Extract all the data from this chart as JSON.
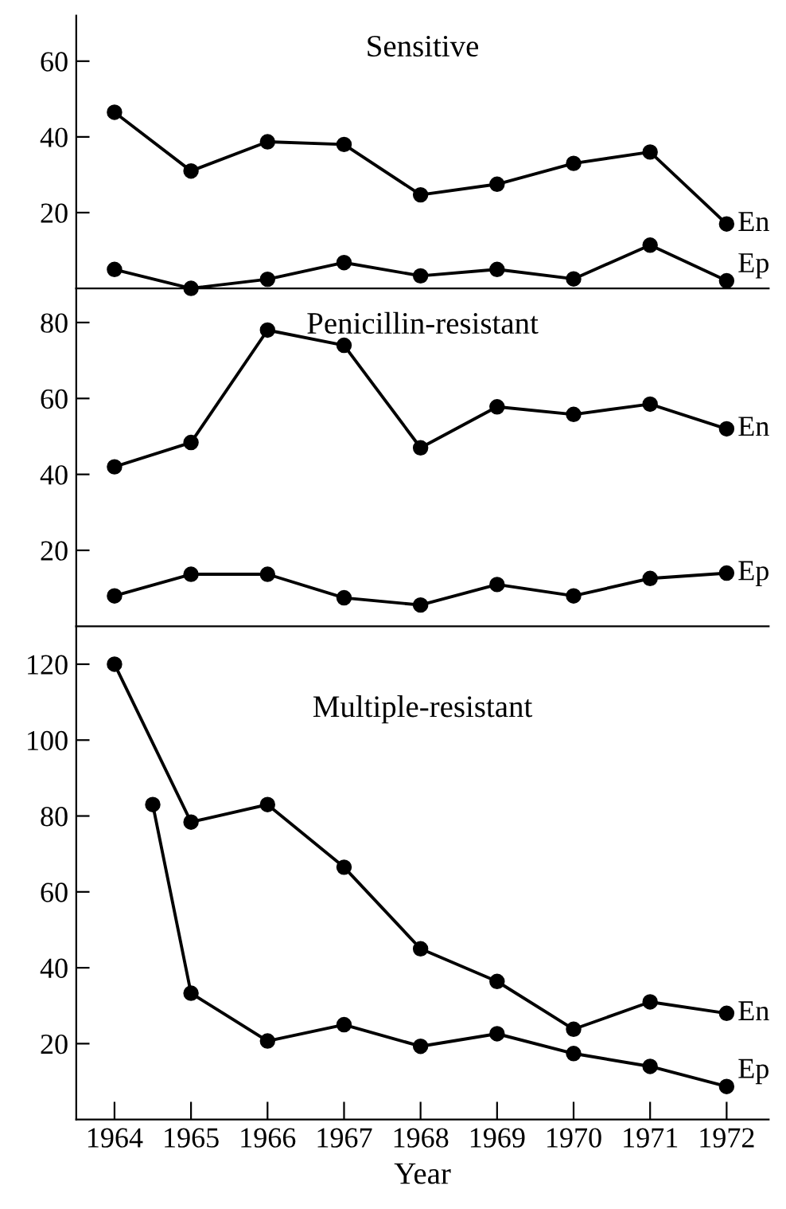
{
  "chart_data": [
    {
      "type": "line",
      "title": "Sensitive",
      "x": [
        1964,
        1965,
        1966,
        1967,
        1968,
        1969,
        1970,
        1971,
        1972
      ],
      "xlim": [
        1963.5,
        1972.55
      ],
      "xticks": [
        1964,
        1965,
        1966,
        1967,
        1968,
        1969,
        1970,
        1971,
        1972
      ],
      "ylim": [
        0,
        72
      ],
      "yticks": [
        20,
        40,
        60
      ],
      "tick_labels": "y",
      "marker": "circle",
      "grid": false,
      "legend": false,
      "series": [
        {
          "name": "En",
          "color": "#000000",
          "values": [
            46.5,
            31,
            38.7,
            38,
            24.7,
            27.5,
            33,
            36,
            17
          ]
        },
        {
          "name": "Ep",
          "color": "#000000",
          "values": [
            5,
            0,
            2.4,
            6.8,
            3.3,
            5,
            2.5,
            11.4,
            2
          ]
        }
      ]
    },
    {
      "type": "line",
      "title": "Penicillin-resistant",
      "x": [
        1964,
        1965,
        1966,
        1967,
        1968,
        1969,
        1970,
        1971,
        1972
      ],
      "xlim": [
        1963.5,
        1972.55
      ],
      "xticks": [
        1964,
        1965,
        1966,
        1967,
        1968,
        1969,
        1970,
        1971,
        1972
      ],
      "ylim": [
        0,
        89
      ],
      "yticks": [
        20,
        40,
        60,
        80
      ],
      "tick_labels": "y",
      "marker": "circle",
      "grid": false,
      "legend": false,
      "series": [
        {
          "name": "En",
          "color": "#000000",
          "values": [
            42,
            48.4,
            78,
            74,
            47,
            57.8,
            55.8,
            58.5,
            52
          ]
        },
        {
          "name": "Ep",
          "color": "#000000",
          "values": [
            8,
            13.7,
            13.7,
            7.5,
            5.6,
            11,
            8,
            12.6,
            14
          ]
        }
      ]
    },
    {
      "type": "line",
      "title": "Multiple-resistant",
      "xlabel": "Year",
      "x": [
        1964,
        1965,
        1966,
        1967,
        1968,
        1969,
        1970,
        1971,
        1972
      ],
      "xlim": [
        1963.5,
        1972.55
      ],
      "xticks": [
        1964,
        1965,
        1966,
        1967,
        1968,
        1969,
        1970,
        1971,
        1972
      ],
      "ylim": [
        0,
        130
      ],
      "yticks": [
        20,
        40,
        60,
        80,
        100,
        120
      ],
      "marker": "circle",
      "grid": false,
      "legend": false,
      "series": [
        {
          "name": "En",
          "color": "#000000",
          "values": [
            120,
            78.4,
            83,
            66.5,
            45,
            36.4,
            23.8,
            31,
            28
          ]
        },
        {
          "name": "Ep",
          "color": "#000000",
          "x": [
            1964.5,
            1965,
            1966,
            1967,
            1968,
            1969,
            1970,
            1971,
            1972
          ],
          "values": [
            83,
            33.3,
            20.7,
            25,
            19.3,
            22.6,
            17.4,
            14,
            8.7
          ]
        }
      ]
    }
  ]
}
